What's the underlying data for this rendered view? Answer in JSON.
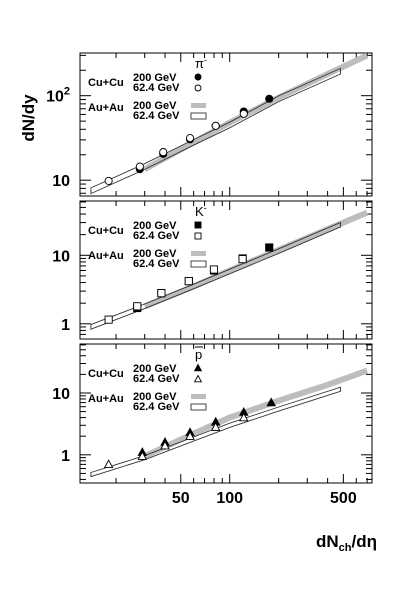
{
  "chart_data": {
    "type": "scatter",
    "xlabel_main": "dN",
    "xlabel_sub": "ch",
    "xlabel_tail": "/dη",
    "ylabel": "dN/dy",
    "xscale": "log",
    "yscale": "log",
    "xlim": [
      12,
      750
    ],
    "x_ticks": [
      {
        "value": 50,
        "label": "50"
      },
      {
        "value": 100,
        "label": "100"
      },
      {
        "value": 500,
        "label": "500"
      }
    ],
    "legend": {
      "cucu": "Cu+Cu",
      "auau": "Au+Au",
      "e200": "200 GeV",
      "e62": "62.4 GeV"
    },
    "panels": [
      {
        "particle": "π",
        "particle_sup": "-",
        "ylim": [
          6.5,
          320
        ],
        "y_ticks": [
          {
            "value": 10,
            "label": "10"
          },
          {
            "value": 100,
            "label": "10",
            "sup": "2"
          }
        ],
        "series": [
          {
            "name": "Cu+Cu 200 GeV",
            "marker": "circle-filled",
            "points": [
              [
                28,
                13.5
              ],
              [
                39,
                20.5
              ],
              [
                57,
                30.5
              ],
              [
                82,
                44
              ],
              [
                122,
                65
              ],
              [
                175,
                92
              ]
            ]
          },
          {
            "name": "Cu+Cu 62.4 GeV",
            "marker": "circle-open",
            "points": [
              [
                18,
                9.8
              ],
              [
                28,
                14.5
              ],
              [
                39,
                21.5
              ],
              [
                57,
                31.5
              ],
              [
                82,
                44
              ],
              [
                122,
                61
              ]
            ]
          },
          {
            "name": "Au+Au 200 GeV",
            "style": "band-gray",
            "points": [
              [
                30,
                13.5
              ],
              [
                60,
                28
              ],
              [
                100,
                48
              ],
              [
                200,
                95
              ],
              [
                400,
                180
              ],
              [
                700,
                300
              ]
            ]
          },
          {
            "name": "Au+Au 62.4 GeV",
            "style": "box-open",
            "points": [
              [
                14,
                7.5
              ],
              [
                30,
                14.5
              ],
              [
                60,
                28
              ],
              [
                100,
                45
              ],
              [
                200,
                92
              ],
              [
                480,
                195
              ]
            ]
          }
        ]
      },
      {
        "particle": "K",
        "particle_sup": "-",
        "ylim": [
          0.6,
          62
        ],
        "y_ticks": [
          {
            "value": 1,
            "label": "1"
          },
          {
            "value": 10,
            "label": "10"
          }
        ],
        "series": [
          {
            "name": "Cu+Cu 200 GeV",
            "marker": "square-filled",
            "points": [
              [
                27,
                1.7
              ],
              [
                38,
                2.8
              ],
              [
                56,
                4.2
              ],
              [
                80,
                6.0
              ],
              [
                120,
                9.0
              ],
              [
                175,
                13
              ]
            ]
          },
          {
            "name": "Cu+Cu 62.4 GeV",
            "marker": "square-open",
            "points": [
              [
                18,
                1.15
              ],
              [
                27,
                1.8
              ],
              [
                38,
                2.8
              ],
              [
                56,
                4.2
              ],
              [
                80,
                6.2
              ],
              [
                120,
                8.8
              ]
            ]
          },
          {
            "name": "Au+Au 200 GeV",
            "style": "band-gray",
            "points": [
              [
                30,
                1.8
              ],
              [
                60,
                3.5
              ],
              [
                100,
                6.0
              ],
              [
                200,
                12
              ],
              [
                400,
                24
              ],
              [
                700,
                42
              ]
            ]
          },
          {
            "name": "Au+Au 62.4 GeV",
            "style": "box-open",
            "points": [
              [
                14,
                0.9
              ],
              [
                30,
                1.8
              ],
              [
                60,
                3.5
              ],
              [
                100,
                5.8
              ],
              [
                200,
                11.5
              ],
              [
                480,
                28
              ]
            ]
          }
        ]
      },
      {
        "particle": "p",
        "particle_bar": true,
        "ylim": [
          0.35,
          62
        ],
        "y_ticks": [
          {
            "value": 1,
            "label": "1"
          },
          {
            "value": 10,
            "label": "10"
          }
        ],
        "series": [
          {
            "name": "Cu+Cu 200 GeV",
            "marker": "triangle-filled",
            "points": [
              [
                29,
                1.1
              ],
              [
                40,
                1.6
              ],
              [
                57,
                2.3
              ],
              [
                82,
                3.4
              ],
              [
                122,
                4.9
              ],
              [
                180,
                7.0
              ]
            ]
          },
          {
            "name": "Cu+Cu 62.4 GeV",
            "marker": "triangle-open",
            "points": [
              [
                18,
                0.7
              ],
              [
                29,
                0.95
              ],
              [
                40,
                1.4
              ],
              [
                57,
                2.0
              ],
              [
                82,
                2.8
              ],
              [
                122,
                4.0
              ]
            ]
          },
          {
            "name": "Au+Au 200 GeV",
            "style": "band-gray",
            "points": [
              [
                30,
                0.95
              ],
              [
                60,
                2.2
              ],
              [
                100,
                4.0
              ],
              [
                200,
                7.5
              ],
              [
                400,
                13.5
              ],
              [
                700,
                23
              ]
            ]
          },
          {
            "name": "Au+Au 62.4 GeV",
            "style": "box-open",
            "points": [
              [
                14,
                0.48
              ],
              [
                30,
                0.9
              ],
              [
                60,
                1.8
              ],
              [
                100,
                3.0
              ],
              [
                200,
                5.5
              ],
              [
                480,
                11.5
              ]
            ]
          }
        ]
      }
    ]
  }
}
